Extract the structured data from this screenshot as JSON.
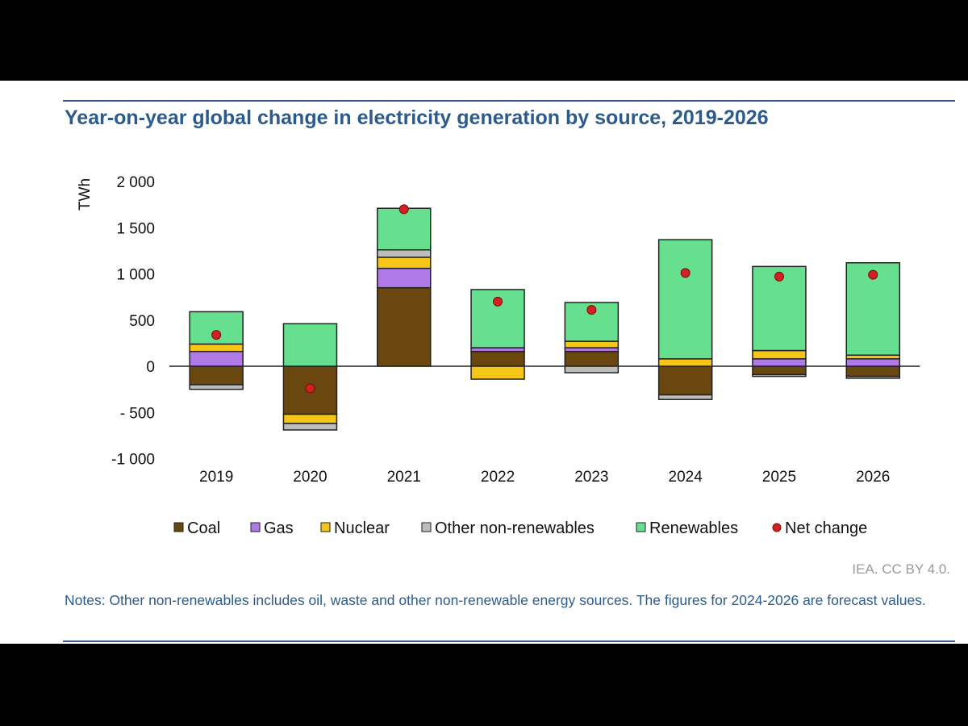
{
  "chart_data": {
    "type": "bar",
    "stacked": true,
    "title": "Year-on-year global change in electricity generation by source, 2019-2026",
    "ylabel": "TWh",
    "xlabel": "",
    "ylim": [
      -1000,
      2000
    ],
    "yticks": [
      2000,
      1500,
      1000,
      500,
      0,
      -500,
      -1000
    ],
    "ytick_labels": [
      "2 000",
      "1 500",
      "1 000",
      "500",
      "0",
      "- 500",
      "-1 000"
    ],
    "categories": [
      "2019",
      "2020",
      "2021",
      "2022",
      "2023",
      "2024",
      "2025",
      "2026"
    ],
    "series": [
      {
        "name": "Coal",
        "color": "#6b4710",
        "values": [
          -200,
          -520,
          850,
          160,
          160,
          -310,
          -90,
          -110
        ]
      },
      {
        "name": "Gas",
        "color": "#b07ae6",
        "values": [
          160,
          0,
          210,
          40,
          40,
          0,
          80,
          80
        ]
      },
      {
        "name": "Nuclear",
        "color": "#f5c518",
        "values": [
          80,
          -100,
          120,
          -140,
          70,
          80,
          90,
          40
        ]
      },
      {
        "name": "Other non-renewables",
        "color": "#bdbdbd",
        "values": [
          -50,
          -70,
          80,
          0,
          -70,
          -50,
          -20,
          -20
        ]
      },
      {
        "name": "Renewables",
        "color": "#66e08f",
        "values": [
          350,
          460,
          450,
          630,
          420,
          1290,
          910,
          1000
        ]
      }
    ],
    "net_change": {
      "name": "Net change",
      "color": "#d42020",
      "values": [
        340,
        -240,
        1700,
        700,
        610,
        1010,
        970,
        990
      ]
    },
    "legend_position": "bottom"
  },
  "credit": "IEA. CC BY 4.0.",
  "notes": "Notes: Other non-renewables includes oil, waste and other non-renewable energy sources. The figures for 2024-2026 are forecast values."
}
